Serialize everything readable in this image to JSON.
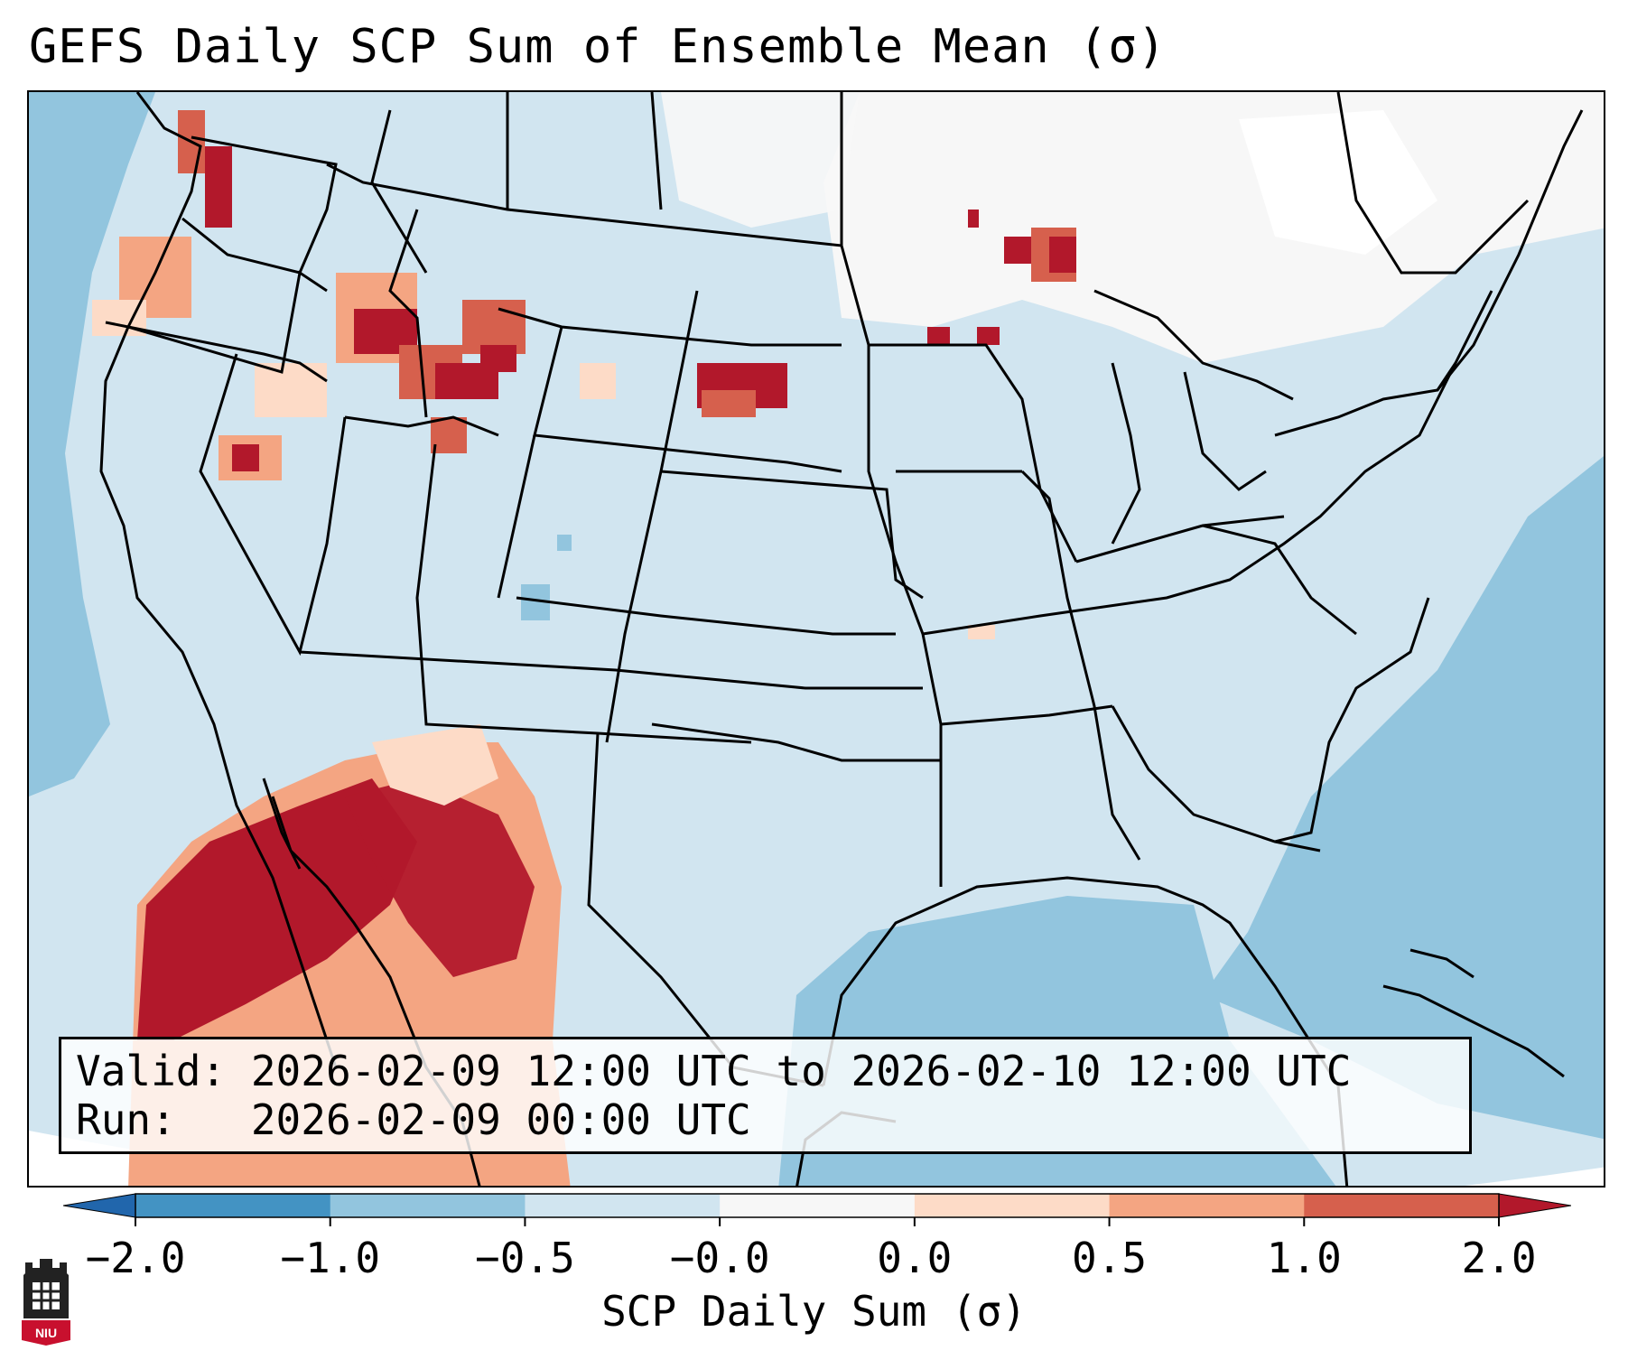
{
  "title": "GEFS Daily SCP Sum of Ensemble Mean (σ)",
  "info": {
    "valid_line": "Valid: 2026-02-09 12:00 UTC to 2026-02-10 12:00 UTC",
    "run_line": "Run:   2026-02-09 00:00 UTC"
  },
  "colorbar": {
    "label": "SCP Daily Sum (σ)",
    "ticks": [
      "−2.0",
      "−1.0",
      "−0.5",
      "−0.0",
      "0.0",
      "0.5",
      "1.0",
      "2.0"
    ],
    "colors": [
      "#4393c3",
      "#92c5de",
      "#d1e5f0",
      "#f7f7f7",
      "#fddbc7",
      "#f4a582",
      "#d6604d"
    ],
    "under_color": "#2166ac",
    "over_color": "#b2182b"
  },
  "logo": {
    "text": "NIU"
  }
}
